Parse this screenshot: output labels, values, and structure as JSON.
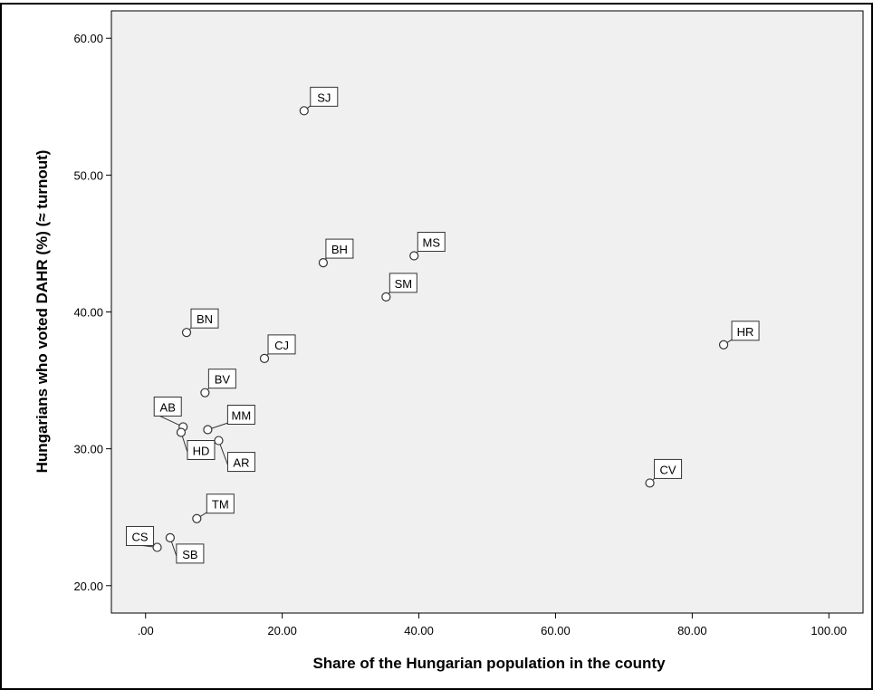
{
  "chart_data": {
    "type": "scatter",
    "title": "",
    "xlabel": "Share of the Hungarian population in the county",
    "ylabel": "Hungarians who voted DAHR (%) (≈ turnout)",
    "xlim": [
      -5,
      105
    ],
    "ylim": [
      18,
      62
    ],
    "xticks": [
      ".00",
      "20.00",
      "40.00",
      "60.00",
      "80.00",
      "100.00"
    ],
    "xtick_values": [
      0,
      20,
      40,
      60,
      80,
      100
    ],
    "yticks": [
      "20.00",
      "30.00",
      "40.00",
      "50.00",
      "60.00"
    ],
    "ytick_values": [
      20,
      30,
      40,
      50,
      60
    ],
    "grid": false,
    "points": [
      {
        "label": "SJ",
        "x": 23.2,
        "y": 54.7
      },
      {
        "label": "BH",
        "x": 26.0,
        "y": 43.6
      },
      {
        "label": "MS",
        "x": 39.3,
        "y": 44.1
      },
      {
        "label": "SM",
        "x": 35.2,
        "y": 41.1
      },
      {
        "label": "HR",
        "x": 84.6,
        "y": 37.6
      },
      {
        "label": "BN",
        "x": 6.0,
        "y": 38.5
      },
      {
        "label": "CJ",
        "x": 17.4,
        "y": 36.6
      },
      {
        "label": "BV",
        "x": 8.7,
        "y": 34.1
      },
      {
        "label": "AB",
        "x": 5.5,
        "y": 31.6
      },
      {
        "label": "HD",
        "x": 5.2,
        "y": 31.2
      },
      {
        "label": "MM",
        "x": 9.1,
        "y": 31.4
      },
      {
        "label": "AR",
        "x": 10.7,
        "y": 30.6
      },
      {
        "label": "CV",
        "x": 73.8,
        "y": 27.5
      },
      {
        "label": "TM",
        "x": 7.5,
        "y": 24.9
      },
      {
        "label": "SB",
        "x": 3.6,
        "y": 23.5
      },
      {
        "label": "CS",
        "x": 1.7,
        "y": 22.8
      }
    ]
  },
  "colors": {
    "plot_background": "#f0f0f0",
    "frame": "#000000",
    "marker_stroke": "#333333",
    "marker_fill": "#ffffff"
  }
}
